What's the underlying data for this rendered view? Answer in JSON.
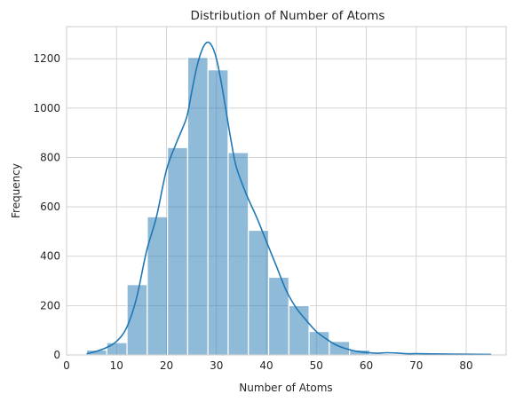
{
  "chart_data": {
    "type": "bar",
    "title": "Distribution of Number of Atoms",
    "xlabel": "Number of Atoms",
    "ylabel": "Frequency",
    "xlim": [
      0,
      88
    ],
    "ylim": [
      0,
      1330
    ],
    "xticks": [
      0,
      10,
      20,
      30,
      40,
      50,
      60,
      70,
      80
    ],
    "yticks": [
      0,
      200,
      400,
      600,
      800,
      1000,
      1200
    ],
    "grid": true,
    "bar_color": "#1f77b4",
    "bins": [
      {
        "x0": 4.0,
        "x1": 8.05,
        "value": 20
      },
      {
        "x0": 8.05,
        "x1": 12.1,
        "value": 50
      },
      {
        "x0": 12.1,
        "x1": 16.15,
        "value": 285
      },
      {
        "x0": 16.15,
        "x1": 20.2,
        "value": 560
      },
      {
        "x0": 20.2,
        "x1": 24.25,
        "value": 840
      },
      {
        "x0": 24.25,
        "x1": 28.3,
        "value": 1205
      },
      {
        "x0": 28.3,
        "x1": 32.35,
        "value": 1155
      },
      {
        "x0": 32.35,
        "x1": 36.4,
        "value": 820
      },
      {
        "x0": 36.4,
        "x1": 40.45,
        "value": 505
      },
      {
        "x0": 40.45,
        "x1": 44.5,
        "value": 315
      },
      {
        "x0": 44.5,
        "x1": 48.55,
        "value": 200
      },
      {
        "x0": 48.55,
        "x1": 52.6,
        "value": 95
      },
      {
        "x0": 52.6,
        "x1": 56.65,
        "value": 55
      },
      {
        "x0": 56.65,
        "x1": 60.7,
        "value": 20
      },
      {
        "x0": 60.7,
        "x1": 64.75,
        "value": 5
      },
      {
        "x0": 64.75,
        "x1": 68.8,
        "value": 3
      },
      {
        "x0": 68.8,
        "x1": 72.85,
        "value": 2
      },
      {
        "x0": 72.85,
        "x1": 76.9,
        "value": 2
      },
      {
        "x0": 76.9,
        "x1": 80.95,
        "value": 1
      },
      {
        "x0": 80.95,
        "x1": 85.0,
        "value": 1
      }
    ],
    "kde": {
      "x": [
        4,
        6,
        8,
        10,
        12,
        14,
        16,
        18,
        20,
        22,
        24,
        25,
        26,
        27,
        28,
        29,
        30,
        31,
        32,
        33,
        34,
        36,
        38,
        40,
        42,
        44,
        46,
        48,
        50,
        52,
        54,
        56,
        58,
        60,
        62,
        64,
        66,
        68,
        70,
        75,
        80,
        85
      ],
      "y": [
        5,
        15,
        30,
        55,
        110,
        230,
        420,
        560,
        750,
        860,
        960,
        1060,
        1160,
        1230,
        1265,
        1255,
        1200,
        1100,
        980,
        860,
        760,
        650,
        560,
        460,
        360,
        260,
        190,
        140,
        95,
        65,
        40,
        25,
        15,
        10,
        7,
        9,
        8,
        5,
        5,
        4,
        3,
        2
      ]
    }
  }
}
